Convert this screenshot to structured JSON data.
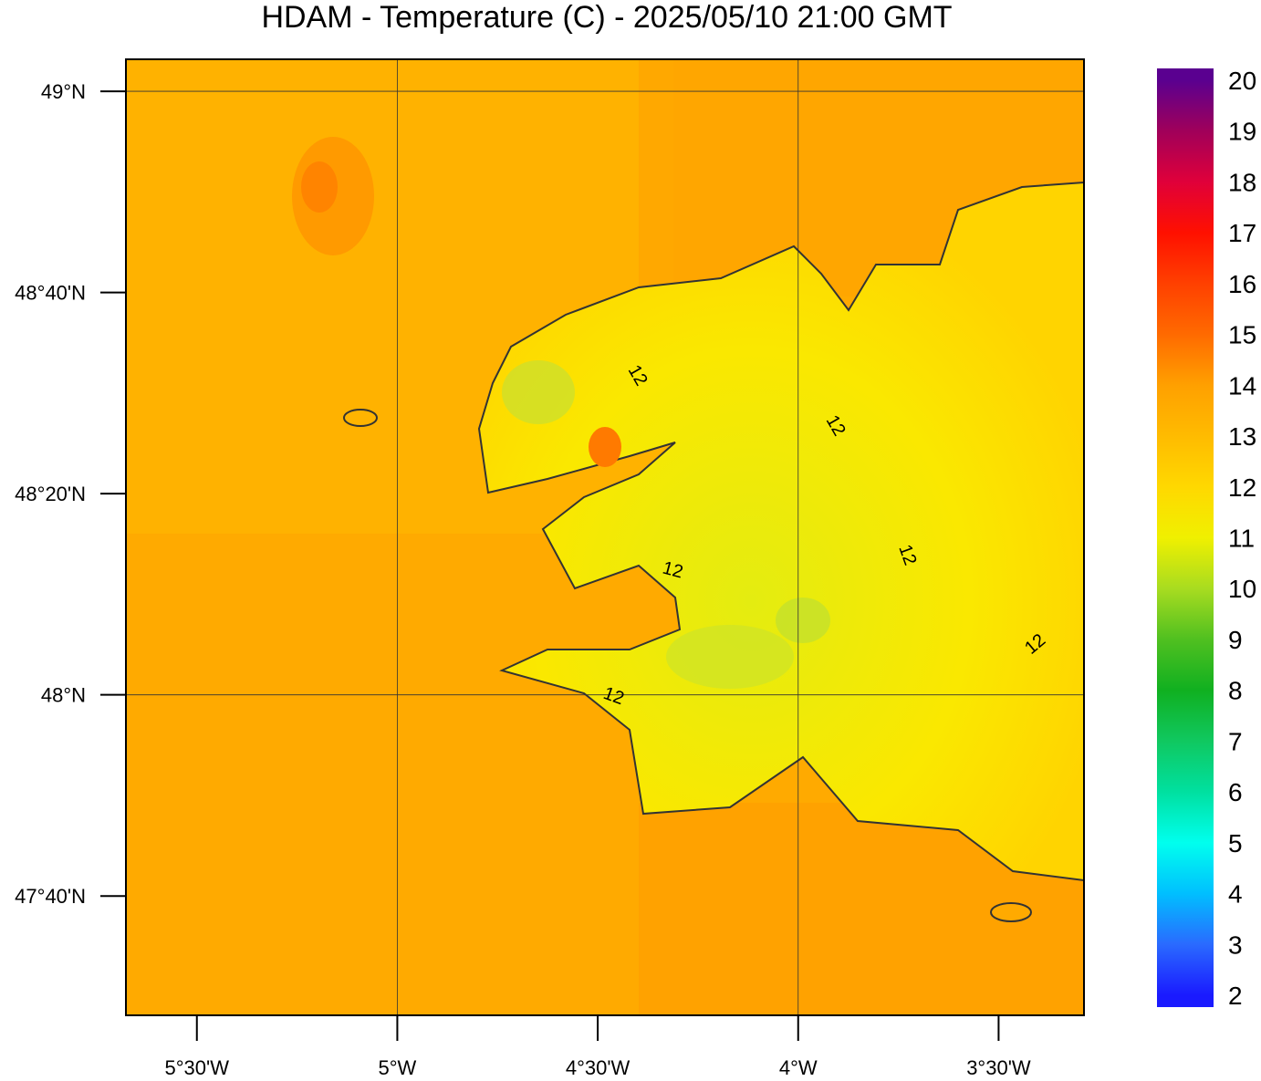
{
  "title": "HDAM - Temperature (C)  -  2025/05/10  21:00 GMT",
  "map": {
    "ylim": [
      47.469,
      49.053
    ],
    "xlim": [
      -5.677,
      -3.287
    ],
    "lat_ticks": [
      {
        "value": 49,
        "label": "49°N"
      },
      {
        "value": 48.6667,
        "label": "48°40'N"
      },
      {
        "value": 48.3333,
        "label": "48°20'N"
      },
      {
        "value": 48,
        "label": "48°N"
      },
      {
        "value": 47.6667,
        "label": "47°40'N"
      }
    ],
    "lon_ticks": [
      {
        "value": -5.5,
        "label": "5°30'W"
      },
      {
        "value": -5,
        "label": "5°W"
      },
      {
        "value": -4.5,
        "label": "4°30'W"
      },
      {
        "value": -4,
        "label": "4°W"
      },
      {
        "value": -3.5,
        "label": "3°30'W"
      }
    ],
    "contour_labels": [
      "12",
      "12",
      "12",
      "12",
      "12",
      "12"
    ]
  },
  "colorbar": {
    "clim": [
      1.77,
      20.23
    ],
    "ticks": [
      2,
      3,
      4,
      5,
      6,
      7,
      8,
      9,
      10,
      11,
      12,
      13,
      14,
      15,
      16,
      17,
      18,
      19,
      20
    ],
    "colors": [
      "#1a1aff",
      "#2a6aff",
      "#00bfff",
      "#00ffee",
      "#00e0a0",
      "#10c860",
      "#10b020",
      "#50c020",
      "#a8dc20",
      "#f0f000",
      "#ffd800",
      "#ffbb00",
      "#ffa000",
      "#ff6a00",
      "#ff4000",
      "#ff1000",
      "#e0003a",
      "#a0005a",
      "#5a0090"
    ]
  }
}
